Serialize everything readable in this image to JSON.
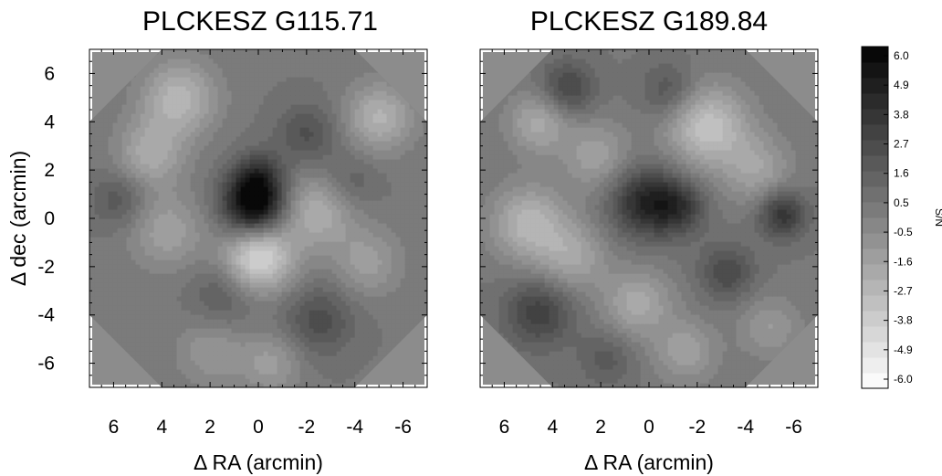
{
  "chart_data": [
    {
      "type": "heatmap",
      "title": "PLCKESZ G115.71",
      "xlabel": "Δ RA (arcmin)",
      "ylabel": "Δ dec (arcmin)",
      "xlim": [
        7,
        -7
      ],
      "ylim": [
        -7,
        7
      ],
      "x_ticks": [
        "6",
        "4",
        "2",
        "0",
        "-2",
        "-4",
        "-6"
      ],
      "y_ticks": [
        "6",
        "4",
        "2",
        "0",
        "-2",
        "-4",
        "-6"
      ],
      "map_radius_arcmin": 7,
      "background_sn": 0.5,
      "features": [
        {
          "x": 0.2,
          "y": 0.6,
          "sn": 6.0,
          "sigma": 0.9
        },
        {
          "x": 0.0,
          "y": 1.8,
          "sn": 2.2,
          "sigma": 0.7
        },
        {
          "x": 0.0,
          "y": -1.6,
          "sn": -4.6,
          "sigma": 1.0
        },
        {
          "x": 3.3,
          "y": 5.0,
          "sn": -3.0,
          "sigma": 1.1
        },
        {
          "x": 4.5,
          "y": 2.7,
          "sn": -2.4,
          "sigma": 1.0
        },
        {
          "x": 3.8,
          "y": -0.5,
          "sn": -2.0,
          "sigma": 1.1
        },
        {
          "x": -2.4,
          "y": 0.3,
          "sn": -2.6,
          "sigma": 1.1
        },
        {
          "x": -5.0,
          "y": 4.2,
          "sn": -2.8,
          "sigma": 1.0
        },
        {
          "x": -2.0,
          "y": 3.5,
          "sn": 1.8,
          "sigma": 0.9
        },
        {
          "x": 5.8,
          "y": 0.8,
          "sn": 1.6,
          "sigma": 0.8
        },
        {
          "x": -2.5,
          "y": -4.2,
          "sn": 2.0,
          "sigma": 1.0
        },
        {
          "x": 1.5,
          "y": -3.2,
          "sn": 1.4,
          "sigma": 0.9
        },
        {
          "x": -4.5,
          "y": -1.8,
          "sn": -1.8,
          "sigma": 1.0
        },
        {
          "x": 2.0,
          "y": -5.5,
          "sn": -1.5,
          "sigma": 1.0
        },
        {
          "x": -0.5,
          "y": -6.0,
          "sn": -1.8,
          "sigma": 0.9
        },
        {
          "x": -3.8,
          "y": 1.5,
          "sn": 1.2,
          "sigma": 0.8
        }
      ]
    },
    {
      "type": "heatmap",
      "title": "PLCKESZ G189.84",
      "xlabel": "Δ RA (arcmin)",
      "ylabel": "",
      "xlim": [
        7,
        -7
      ],
      "ylim": [
        -7,
        7
      ],
      "x_ticks": [
        "6",
        "4",
        "2",
        "0",
        "-2",
        "-4",
        "-6"
      ],
      "y_ticks": [],
      "map_radius_arcmin": 7,
      "background_sn": 0.5,
      "features": [
        {
          "x": 0.2,
          "y": 0.7,
          "sn": 3.6,
          "sigma": 1.0
        },
        {
          "x": -1.2,
          "y": 0.5,
          "sn": 2.6,
          "sigma": 0.8
        },
        {
          "x": -5.5,
          "y": 0.2,
          "sn": 3.2,
          "sigma": 0.7
        },
        {
          "x": 3.4,
          "y": 5.4,
          "sn": 2.4,
          "sigma": 0.8
        },
        {
          "x": 4.6,
          "y": -3.9,
          "sn": 2.6,
          "sigma": 1.0
        },
        {
          "x": -3.2,
          "y": -2.2,
          "sn": 2.2,
          "sigma": 0.8
        },
        {
          "x": -0.8,
          "y": 5.3,
          "sn": 1.8,
          "sigma": 0.8
        },
        {
          "x": -2.4,
          "y": 3.8,
          "sn": -3.6,
          "sigma": 1.2
        },
        {
          "x": 5.0,
          "y": -0.2,
          "sn": -3.0,
          "sigma": 1.1
        },
        {
          "x": 4.6,
          "y": 4.0,
          "sn": -2.4,
          "sigma": 0.9
        },
        {
          "x": 2.2,
          "y": 2.6,
          "sn": -2.0,
          "sigma": 1.0
        },
        {
          "x": 3.2,
          "y": -1.6,
          "sn": -2.2,
          "sigma": 1.0
        },
        {
          "x": 0.5,
          "y": -3.5,
          "sn": -2.4,
          "sigma": 1.0
        },
        {
          "x": -4.5,
          "y": 2.0,
          "sn": -2.0,
          "sigma": 1.0
        },
        {
          "x": -1.5,
          "y": -5.5,
          "sn": -2.0,
          "sigma": 0.9
        },
        {
          "x": -5.0,
          "y": -4.5,
          "sn": -1.6,
          "sigma": 0.9
        },
        {
          "x": 1.8,
          "y": -5.8,
          "sn": 1.4,
          "sigma": 0.8
        }
      ]
    }
  ],
  "colorbar": {
    "label": "S/N",
    "min": -6.0,
    "max": 6.0,
    "levels": 22,
    "ticks": [
      "6.0",
      "4.9",
      "3.8",
      "2.7",
      "1.6",
      "0.5",
      "-0.5",
      "-1.6",
      "-2.7",
      "-3.8",
      "-4.9",
      "-6.0"
    ]
  }
}
